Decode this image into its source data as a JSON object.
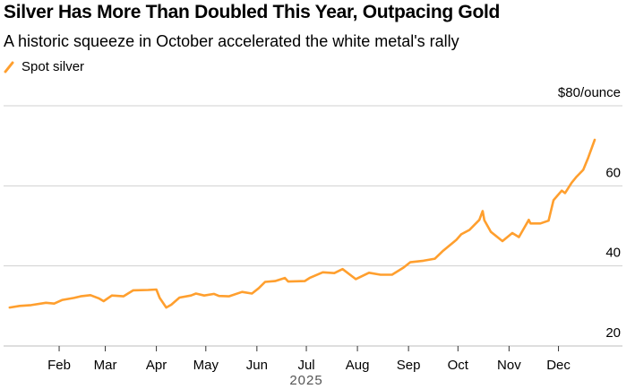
{
  "title": "Silver Has More Than Doubled This Year, Outpacing Gold",
  "subtitle": "A historic squeeze in October accelerated the white metal's rally",
  "legend": {
    "label": "Spot silver",
    "icon": "orange-line-swatch"
  },
  "colors": {
    "series": "#ff9f2e",
    "grid": "#d0d0d0",
    "axis": "#bdbdbd"
  },
  "chart_data": {
    "type": "line",
    "title": "Silver Has More Than Doubled This Year, Outpacing Gold",
    "subtitle": "A historic squeeze in October accelerated the white metal's rally",
    "xlabel": "2025",
    "ylabel": "",
    "y_unit_label": "$80/ounce",
    "ylim": [
      20,
      80
    ],
    "y_ticks": [
      "$80/ounce",
      "60",
      "40",
      "20"
    ],
    "y_tick_values": [
      80,
      60,
      40,
      20
    ],
    "x_ticks": [
      "Feb",
      "Mar",
      "Apr",
      "May",
      "Jun",
      "Jul",
      "Aug",
      "Sep",
      "Oct",
      "Nov",
      "Dec"
    ],
    "x_year": "2025",
    "grid": true,
    "legend_position": "top-left",
    "series": [
      {
        "name": "Spot silver",
        "x": [
          "2025-01-02",
          "2025-01-08",
          "2025-01-15",
          "2025-01-24",
          "2025-01-29",
          "2025-02-03",
          "2025-02-10",
          "2025-02-14",
          "2025-02-20",
          "2025-02-25",
          "2025-02-28",
          "2025-03-05",
          "2025-03-12",
          "2025-03-18",
          "2025-03-27",
          "2025-04-01",
          "2025-04-03",
          "2025-04-07",
          "2025-04-10",
          "2025-04-15",
          "2025-04-22",
          "2025-04-25",
          "2025-04-30",
          "2025-05-06",
          "2025-05-09",
          "2025-05-15",
          "2025-05-23",
          "2025-05-29",
          "2025-06-02",
          "2025-06-06",
          "2025-06-12",
          "2025-06-18",
          "2025-06-20",
          "2025-06-30",
          "2025-07-03",
          "2025-07-11",
          "2025-07-18",
          "2025-07-23",
          "2025-07-31",
          "2025-08-08",
          "2025-08-15",
          "2025-08-22",
          "2025-08-29",
          "2025-09-02",
          "2025-09-10",
          "2025-09-17",
          "2025-09-22",
          "2025-09-30",
          "2025-10-03",
          "2025-10-08",
          "2025-10-14",
          "2025-10-16",
          "2025-10-17",
          "2025-10-21",
          "2025-10-28",
          "2025-11-03",
          "2025-11-07",
          "2025-11-13",
          "2025-11-14",
          "2025-11-20",
          "2025-11-25",
          "2025-11-28",
          "2025-12-03",
          "2025-12-05",
          "2025-12-09",
          "2025-12-12",
          "2025-12-16",
          "2025-12-19",
          "2025-12-23"
        ],
        "values": [
          29.6,
          30.0,
          30.2,
          30.8,
          30.6,
          31.5,
          32.0,
          32.4,
          32.7,
          31.9,
          31.2,
          32.6,
          32.4,
          33.9,
          34.0,
          34.1,
          32.0,
          29.6,
          30.3,
          32.1,
          32.6,
          33.1,
          32.6,
          33.0,
          32.5,
          32.4,
          33.5,
          33.1,
          34.4,
          36.0,
          36.2,
          37.0,
          36.1,
          36.2,
          37.0,
          38.4,
          38.2,
          39.2,
          36.7,
          38.3,
          37.8,
          37.8,
          39.6,
          40.9,
          41.3,
          41.8,
          43.8,
          46.5,
          47.9,
          49.0,
          51.5,
          53.7,
          51.4,
          48.5,
          46.2,
          48.2,
          47.2,
          51.5,
          50.6,
          50.6,
          51.3,
          56.4,
          58.8,
          58.2,
          60.8,
          62.3,
          64.0,
          67.0,
          71.5
        ]
      }
    ]
  }
}
